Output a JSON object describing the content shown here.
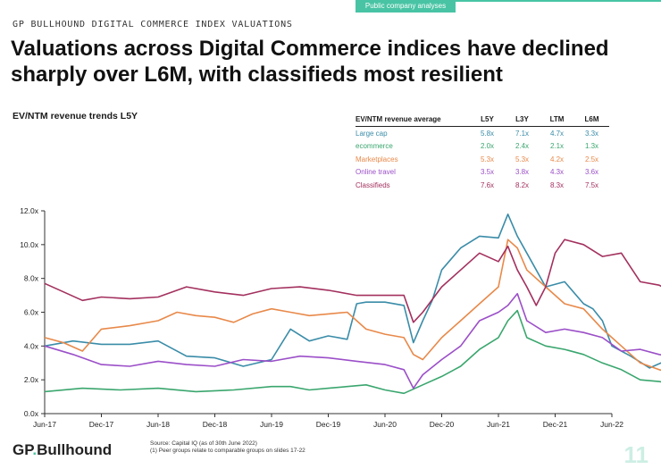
{
  "header": {
    "tab_label": "Public company analyses",
    "eyebrow": "GP BULLHOUND DIGITAL COMMERCE INDEX VALUATIONS",
    "title": "Valuations across Digital Commerce indices have declined sharply over L6M, with classifieds most resilient"
  },
  "chart_title": "EV/NTM revenue trends L5Y",
  "table": {
    "headers": [
      "EV/NTM revenue average",
      "L5Y",
      "L3Y",
      "LTM",
      "L6M"
    ],
    "rows": [
      {
        "label": "Large cap",
        "color": "#3a8ca8",
        "values": [
          "5.8x",
          "7.1x",
          "4.7x",
          "3.3x"
        ]
      },
      {
        "label": "ecommerce",
        "color": "#3aa66e",
        "values": [
          "2.0x",
          "2.4x",
          "2.1x",
          "1.3x"
        ]
      },
      {
        "label": "Marketplaces",
        "color": "#e8894a",
        "values": [
          "5.3x",
          "5.3x",
          "4.2x",
          "2.5x"
        ]
      },
      {
        "label": "Online travel",
        "color": "#9b4fc8",
        "values": [
          "3.5x",
          "3.8x",
          "4.3x",
          "3.6x"
        ]
      },
      {
        "label": "Classifieds",
        "color": "#a3305e",
        "values": [
          "7.6x",
          "8.2x",
          "8.3x",
          "7.5x"
        ]
      }
    ]
  },
  "chart_data": {
    "type": "line",
    "title": "EV/NTM revenue trends L5Y",
    "x_start": "2017-06",
    "x_end": "2022-06",
    "xticks": [
      "Jun-17",
      "Dec-17",
      "Jun-18",
      "Dec-18",
      "Jun-19",
      "Dec-19",
      "Jun-20",
      "Dec-20",
      "Jun-21",
      "Dec-21",
      "Jun-22"
    ],
    "yticks": [
      "0.0x",
      "2.0x",
      "4.0x",
      "6.0x",
      "8.0x",
      "10.0x",
      "12.0x"
    ],
    "ylim": [
      0,
      12
    ],
    "grid": false,
    "series": [
      {
        "name": "Large cap",
        "color": "#3a8ca8",
        "end_label": "3.1x",
        "points": [
          [
            0,
            4.0
          ],
          [
            3,
            4.3
          ],
          [
            6,
            4.1
          ],
          [
            9,
            4.1
          ],
          [
            12,
            4.3
          ],
          [
            15,
            3.4
          ],
          [
            18,
            3.3
          ],
          [
            21,
            2.8
          ],
          [
            24,
            3.2
          ],
          [
            26,
            5.0
          ],
          [
            28,
            4.3
          ],
          [
            30,
            4.6
          ],
          [
            32,
            4.4
          ],
          [
            33,
            6.5
          ],
          [
            34,
            6.6
          ],
          [
            36,
            6.6
          ],
          [
            38,
            6.4
          ],
          [
            39,
            4.2
          ],
          [
            40,
            5.5
          ],
          [
            41,
            6.7
          ],
          [
            42,
            8.5
          ],
          [
            44,
            9.8
          ],
          [
            46,
            10.5
          ],
          [
            48,
            10.4
          ],
          [
            49,
            11.8
          ],
          [
            50,
            10.5
          ],
          [
            51,
            9.5
          ],
          [
            53,
            7.5
          ],
          [
            55,
            7.8
          ],
          [
            57,
            6.5
          ],
          [
            58,
            6.2
          ],
          [
            59,
            5.5
          ],
          [
            60,
            4.0
          ],
          [
            62,
            3.4
          ],
          [
            64,
            2.7
          ],
          [
            66,
            3.2
          ],
          [
            68,
            3.0
          ],
          [
            70,
            3.4
          ],
          [
            72,
            3.1
          ]
        ]
      },
      {
        "name": "ecommerce",
        "color": "#3aa66e",
        "end_label": "1.0x",
        "points": [
          [
            0,
            1.3
          ],
          [
            4,
            1.5
          ],
          [
            8,
            1.4
          ],
          [
            12,
            1.5
          ],
          [
            16,
            1.3
          ],
          [
            20,
            1.4
          ],
          [
            24,
            1.6
          ],
          [
            26,
            1.6
          ],
          [
            28,
            1.4
          ],
          [
            30,
            1.5
          ],
          [
            32,
            1.6
          ],
          [
            34,
            1.7
          ],
          [
            36,
            1.4
          ],
          [
            38,
            1.2
          ],
          [
            40,
            1.7
          ],
          [
            42,
            2.2
          ],
          [
            44,
            2.8
          ],
          [
            46,
            3.8
          ],
          [
            48,
            4.5
          ],
          [
            49,
            5.5
          ],
          [
            50,
            6.1
          ],
          [
            51,
            4.5
          ],
          [
            53,
            4.0
          ],
          [
            55,
            3.8
          ],
          [
            57,
            3.5
          ],
          [
            59,
            3.0
          ],
          [
            61,
            2.6
          ],
          [
            63,
            2.0
          ],
          [
            65,
            1.9
          ],
          [
            67,
            1.7
          ],
          [
            69,
            1.2
          ],
          [
            71,
            1.1
          ],
          [
            72,
            1.0
          ]
        ]
      },
      {
        "name": "Marketplaces",
        "color": "#e8894a",
        "end_label": "1.7x",
        "points": [
          [
            0,
            4.5
          ],
          [
            2,
            4.2
          ],
          [
            4,
            3.7
          ],
          [
            6,
            5.0
          ],
          [
            9,
            5.2
          ],
          [
            12,
            5.5
          ],
          [
            14,
            6.0
          ],
          [
            16,
            5.8
          ],
          [
            18,
            5.7
          ],
          [
            20,
            5.4
          ],
          [
            22,
            5.9
          ],
          [
            24,
            6.2
          ],
          [
            26,
            6.0
          ],
          [
            28,
            5.8
          ],
          [
            30,
            5.9
          ],
          [
            32,
            6.0
          ],
          [
            34,
            5.0
          ],
          [
            36,
            4.7
          ],
          [
            38,
            4.5
          ],
          [
            39,
            3.5
          ],
          [
            40,
            3.2
          ],
          [
            42,
            4.5
          ],
          [
            44,
            5.5
          ],
          [
            46,
            6.5
          ],
          [
            48,
            7.5
          ],
          [
            49,
            10.3
          ],
          [
            50,
            9.8
          ],
          [
            51,
            8.5
          ],
          [
            53,
            7.5
          ],
          [
            55,
            6.5
          ],
          [
            57,
            6.2
          ],
          [
            59,
            5.0
          ],
          [
            61,
            4.0
          ],
          [
            63,
            3.0
          ],
          [
            65,
            2.6
          ],
          [
            67,
            2.3
          ],
          [
            69,
            1.9
          ],
          [
            71,
            1.8
          ],
          [
            72,
            1.7
          ]
        ]
      },
      {
        "name": "Online travel",
        "color": "#9b4fc8",
        "end_label": "2.8x",
        "points": [
          [
            0,
            4.0
          ],
          [
            3,
            3.5
          ],
          [
            6,
            2.9
          ],
          [
            9,
            2.8
          ],
          [
            12,
            3.1
          ],
          [
            15,
            2.9
          ],
          [
            18,
            2.8
          ],
          [
            21,
            3.2
          ],
          [
            24,
            3.1
          ],
          [
            27,
            3.4
          ],
          [
            30,
            3.3
          ],
          [
            33,
            3.1
          ],
          [
            36,
            2.9
          ],
          [
            38,
            2.6
          ],
          [
            39,
            1.5
          ],
          [
            40,
            2.3
          ],
          [
            42,
            3.2
          ],
          [
            44,
            4.0
          ],
          [
            46,
            5.5
          ],
          [
            48,
            6.0
          ],
          [
            49,
            6.4
          ],
          [
            50,
            7.1
          ],
          [
            51,
            5.5
          ],
          [
            53,
            4.8
          ],
          [
            55,
            5.0
          ],
          [
            57,
            4.8
          ],
          [
            59,
            4.5
          ],
          [
            61,
            3.7
          ],
          [
            63,
            3.8
          ],
          [
            65,
            3.5
          ],
          [
            67,
            3.3
          ],
          [
            69,
            3.0
          ],
          [
            71,
            2.9
          ],
          [
            72,
            2.8
          ]
        ]
      },
      {
        "name": "Classifieds",
        "color": "#a3305e",
        "end_label": "6.5x",
        "points": [
          [
            0,
            7.7
          ],
          [
            2,
            7.2
          ],
          [
            4,
            6.7
          ],
          [
            6,
            6.9
          ],
          [
            9,
            6.8
          ],
          [
            12,
            6.9
          ],
          [
            15,
            7.5
          ],
          [
            18,
            7.2
          ],
          [
            21,
            7.0
          ],
          [
            24,
            7.4
          ],
          [
            27,
            7.5
          ],
          [
            30,
            7.3
          ],
          [
            33,
            7.0
          ],
          [
            36,
            7.0
          ],
          [
            38,
            7.0
          ],
          [
            39,
            5.4
          ],
          [
            40,
            6.0
          ],
          [
            42,
            7.5
          ],
          [
            44,
            8.5
          ],
          [
            46,
            9.5
          ],
          [
            48,
            9.0
          ],
          [
            49,
            9.9
          ],
          [
            50,
            8.5
          ],
          [
            51,
            7.5
          ],
          [
            52,
            6.4
          ],
          [
            53,
            7.5
          ],
          [
            54,
            9.5
          ],
          [
            55,
            10.3
          ],
          [
            57,
            10.0
          ],
          [
            59,
            9.3
          ],
          [
            61,
            9.5
          ],
          [
            63,
            7.8
          ],
          [
            65,
            7.6
          ],
          [
            67,
            7.0
          ],
          [
            69,
            6.5
          ],
          [
            70,
            6.8
          ],
          [
            71,
            6.2
          ],
          [
            72,
            6.5
          ]
        ]
      }
    ]
  },
  "footer": {
    "brand_prefix": "GP",
    "brand_dot": ".",
    "brand_suffix": "Bullhound",
    "source": "Source: Capital IQ (as of 30th June 2022)",
    "note": "(1) Peer groups relate to comparable groups on slides 17-22",
    "page": "11"
  }
}
